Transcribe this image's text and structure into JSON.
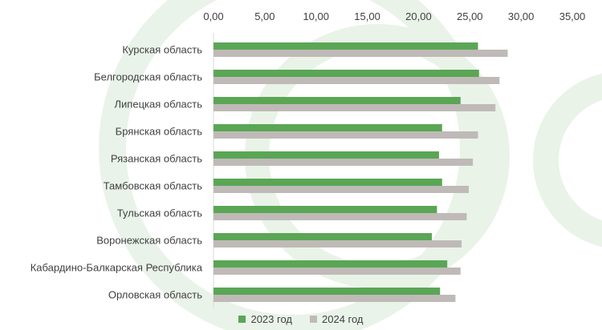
{
  "chart_data": {
    "type": "bar",
    "orientation": "horizontal",
    "x_axis_position": "top",
    "xlim": [
      0,
      35
    ],
    "x_ticks": [
      "0,00",
      "5,00",
      "10,00",
      "15,00",
      "20,00",
      "25,00",
      "30,00",
      "35,00"
    ],
    "categories": [
      "Курская область",
      "Белгородская область",
      "Липецкая область",
      "Брянская область",
      "Рязанская область",
      "Тамбовская область",
      "Тульская область",
      "Воронежская область",
      "Кабардино-Балкарская Республика",
      "Орловская область"
    ],
    "series": [
      {
        "name": "2023 год",
        "color": "#5aa655",
        "values": [
          25.8,
          25.9,
          24.1,
          22.3,
          22.0,
          22.3,
          21.8,
          21.3,
          22.8,
          22.1
        ]
      },
      {
        "name": "2024 год",
        "color": "#bfbab7",
        "values": [
          28.7,
          27.9,
          27.5,
          25.8,
          25.3,
          24.9,
          24.7,
          24.2,
          24.1,
          23.6
        ]
      }
    ],
    "grid": false,
    "legend_position": "bottom"
  }
}
